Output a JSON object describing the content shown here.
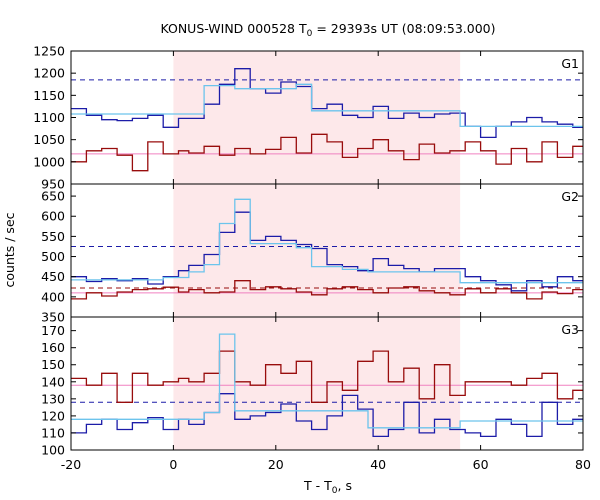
{
  "chart_data": {
    "type": "line",
    "title": {
      "prefix": "KONUS-WIND 000528 T",
      "sub": "0",
      "suffix": " = 29393s UT (08:09:53.000)"
    },
    "xlabel": {
      "prefix": "T - T",
      "sub": "0",
      "suffix": ", s"
    },
    "ylabel": "counts / sec",
    "x_range": [
      -20,
      80
    ],
    "x_ticks": [
      -20,
      0,
      20,
      40,
      60,
      80
    ],
    "highlight_interval": [
      0,
      56
    ],
    "colors": {
      "highlight": "#fde8ea",
      "hist_blue": "#1c1ca8",
      "hist_red": "#980c0c",
      "fit_cyan": "#6cc4ec",
      "bg_pink": "#f080c0",
      "dash_blue": "#1c1ca8",
      "dash_red": "#980c0c"
    },
    "panels": [
      {
        "label": "G1",
        "y_range": [
          950,
          1250
        ],
        "y_ticks": [
          950,
          1000,
          1050,
          1100,
          1150,
          1200,
          1250
        ],
        "dash_blue": 1185,
        "dash_red": null,
        "pink_level": 1018,
        "blue_hist": {
          "edges": [
            -20,
            -17,
            -14,
            -11,
            -8,
            -5,
            -2,
            1,
            3,
            6,
            9,
            12,
            15,
            18,
            21,
            24,
            27,
            30,
            33,
            36,
            39,
            42,
            45,
            48,
            51,
            54,
            57,
            60,
            63,
            66,
            69,
            72,
            75,
            78,
            80
          ],
          "values": [
            1120,
            1105,
            1095,
            1093,
            1098,
            1105,
            1078,
            1098,
            1098,
            1130,
            1175,
            1210,
            1165,
            1155,
            1180,
            1170,
            1120,
            1130,
            1105,
            1100,
            1125,
            1098,
            1110,
            1100,
            1108,
            1110,
            1080,
            1055,
            1080,
            1090,
            1100,
            1090,
            1085,
            1078
          ]
        },
        "red_hist": {
          "edges": [
            -20,
            -17,
            -14,
            -11,
            -8,
            -5,
            -2,
            1,
            3,
            6,
            9,
            12,
            15,
            18,
            21,
            24,
            27,
            30,
            33,
            36,
            39,
            42,
            45,
            48,
            51,
            54,
            57,
            60,
            63,
            66,
            69,
            72,
            75,
            78,
            80
          ],
          "values": [
            1000,
            1025,
            1030,
            1015,
            980,
            1045,
            1018,
            1025,
            1020,
            1035,
            1015,
            1030,
            1018,
            1028,
            1055,
            1020,
            1062,
            1045,
            1010,
            1030,
            1050,
            1025,
            1005,
            1040,
            1020,
            1025,
            1045,
            1025,
            995,
            1030,
            1000,
            1045,
            1010,
            1035
          ]
        },
        "fit": {
          "edges": [
            -20,
            6,
            12,
            24,
            27,
            56,
            80
          ],
          "values": [
            1108,
            1172,
            1165,
            1175,
            1115,
            1080
          ]
        }
      },
      {
        "label": "G2",
        "y_range": [
          350,
          680
        ],
        "y_ticks": [
          350,
          400,
          450,
          500,
          550,
          600,
          650
        ],
        "dash_blue": 525,
        "dash_red": 422,
        "pink_level": 410,
        "blue_hist": {
          "edges": [
            -20,
            -17,
            -14,
            -11,
            -8,
            -5,
            -2,
            1,
            3,
            6,
            9,
            12,
            15,
            18,
            21,
            24,
            27,
            30,
            33,
            36,
            39,
            42,
            45,
            48,
            51,
            54,
            57,
            60,
            63,
            66,
            69,
            72,
            75,
            78,
            80
          ],
          "values": [
            450,
            438,
            445,
            440,
            445,
            432,
            450,
            465,
            478,
            505,
            560,
            610,
            540,
            550,
            540,
            530,
            520,
            480,
            475,
            465,
            495,
            478,
            470,
            462,
            470,
            470,
            450,
            440,
            430,
            415,
            440,
            425,
            450,
            440
          ]
        },
        "red_hist": {
          "edges": [
            -20,
            -17,
            -14,
            -11,
            -8,
            -5,
            -2,
            1,
            3,
            6,
            9,
            12,
            15,
            18,
            21,
            24,
            27,
            30,
            33,
            36,
            39,
            42,
            45,
            48,
            51,
            54,
            57,
            60,
            63,
            66,
            69,
            72,
            75,
            78,
            80
          ],
          "values": [
            395,
            410,
            402,
            412,
            418,
            420,
            424,
            412,
            418,
            410,
            412,
            440,
            418,
            425,
            420,
            412,
            405,
            420,
            425,
            418,
            410,
            422,
            425,
            415,
            410,
            405,
            420,
            410,
            420,
            410,
            395,
            412,
            408,
            418
          ]
        },
        "fit": {
          "edges": [
            -20,
            -2,
            3,
            6,
            9,
            12,
            15,
            24,
            27,
            33,
            38,
            56,
            80
          ],
          "values": [
            442,
            448,
            462,
            480,
            582,
            642,
            532,
            522,
            475,
            468,
            462,
            435
          ]
        }
      },
      {
        "label": "G3",
        "y_range": [
          100,
          178
        ],
        "y_ticks": [
          100,
          110,
          120,
          130,
          140,
          150,
          160,
          170
        ],
        "dash_blue": 128,
        "dash_red": null,
        "pink_level": 138,
        "blue_hist": {
          "edges": [
            -20,
            -17,
            -14,
            -11,
            -8,
            -5,
            -2,
            1,
            3,
            6,
            9,
            12,
            15,
            18,
            21,
            24,
            27,
            30,
            33,
            36,
            39,
            42,
            45,
            48,
            51,
            54,
            57,
            60,
            63,
            66,
            69,
            72,
            75,
            78,
            80
          ],
          "values": [
            110,
            115,
            118,
            112,
            116,
            119,
            112,
            118,
            115,
            122,
            133,
            118,
            120,
            122,
            127,
            117,
            112,
            120,
            132,
            124,
            108,
            112,
            128,
            110,
            118,
            112,
            110,
            108,
            118,
            115,
            108,
            128,
            115,
            118
          ]
        },
        "red_hist": {
          "edges": [
            -20,
            -17,
            -14,
            -11,
            -8,
            -5,
            -2,
            1,
            3,
            6,
            9,
            12,
            15,
            18,
            21,
            24,
            27,
            30,
            33,
            36,
            39,
            42,
            45,
            48,
            51,
            54,
            57,
            60,
            63,
            66,
            69,
            72,
            75,
            78,
            80
          ],
          "values": [
            142,
            138,
            145,
            128,
            145,
            138,
            140,
            142,
            140,
            145,
            158,
            140,
            138,
            150,
            145,
            152,
            128,
            140,
            135,
            152,
            158,
            140,
            148,
            130,
            150,
            132,
            140,
            140,
            140,
            138,
            142,
            145,
            130,
            135
          ]
        },
        "fit": {
          "edges": [
            -20,
            3,
            6,
            9,
            12,
            38,
            56,
            80
          ],
          "values": [
            118,
            118,
            122,
            168,
            123,
            113,
            117
          ]
        }
      }
    ]
  }
}
